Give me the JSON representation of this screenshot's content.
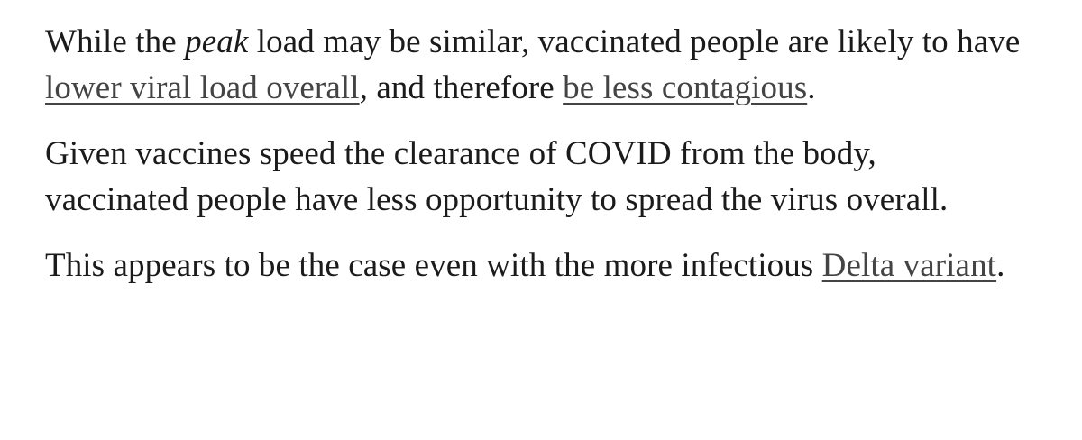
{
  "paragraphs": [
    {
      "t1": "While the ",
      "em": "peak",
      "t2": " load may be similar, vaccinated people are likely to have ",
      "link1": "lower viral load overall",
      "t3": ", and therefore ",
      "link2": "be less contagious",
      "t4": "."
    },
    {
      "text": "Given vaccines speed the clearance of COVID from the body, vaccinated people have less opportunity to spread the virus overall."
    },
    {
      "t1": "This appears to be the case even with the more infectious ",
      "link": "Delta variant",
      "t2": "."
    }
  ],
  "colors": {
    "text": "#1b1b1b",
    "link": "#444444",
    "background": "#ffffff"
  }
}
